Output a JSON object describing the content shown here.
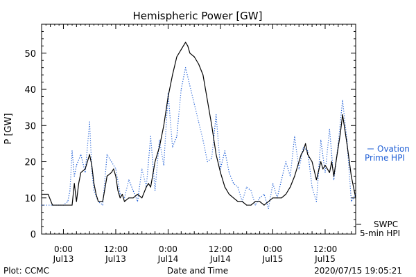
{
  "footer": {
    "plot_credit": "Plot: CCMC",
    "timestamp": "2020/07/15 19:05:21"
  },
  "legend": {
    "ovation_line1": "Ovation",
    "ovation_line2": "Prime HPI",
    "swpc_line1": "SWPC",
    "swpc_line2": "5-min HPI",
    "ovation_color": "#1f5fd6",
    "swpc_color": "#000000"
  },
  "chart_data": {
    "type": "line",
    "title": "Hemispheric Power [GW]",
    "xlabel": "Date and Time",
    "ylabel": "P [GW]",
    "ylim": [
      0,
      58
    ],
    "xlim": [
      "2020-07-12T19:00",
      "2020-07-15T19:00"
    ],
    "yticks": [
      0,
      10,
      20,
      30,
      40,
      50
    ],
    "xticks": [
      {
        "t": "2020-07-13T00:00",
        "time": "0:00",
        "date": "Jul13"
      },
      {
        "t": "2020-07-13T12:00",
        "time": "12:00",
        "date": "Jul13"
      },
      {
        "t": "2020-07-14T00:00",
        "time": "0:00",
        "date": "Jul14"
      },
      {
        "t": "2020-07-14T12:00",
        "time": "12:00",
        "date": "Jul14"
      },
      {
        "t": "2020-07-15T00:00",
        "time": "0:00",
        "date": "Jul15"
      },
      {
        "t": "2020-07-15T12:00",
        "time": "12:00",
        "date": "Jul15"
      }
    ],
    "grid": false,
    "legend_position": "right",
    "series": [
      {
        "name": "SWPC 5-min HPI",
        "style": "solid",
        "color": "#000000",
        "x": [
          "2020-07-12T19:00",
          "2020-07-12T20:30",
          "2020-07-12T21:30",
          "2020-07-13T02:00",
          "2020-07-13T02:30",
          "2020-07-13T03:00",
          "2020-07-13T03:30",
          "2020-07-13T04:00",
          "2020-07-13T05:00",
          "2020-07-13T06:00",
          "2020-07-13T06:30",
          "2020-07-13T07:00",
          "2020-07-13T07:30",
          "2020-07-13T08:00",
          "2020-07-13T09:00",
          "2020-07-13T10:00",
          "2020-07-13T11:00",
          "2020-07-13T11:30",
          "2020-07-13T12:00",
          "2020-07-13T12:30",
          "2020-07-13T13:00",
          "2020-07-13T13:30",
          "2020-07-13T14:00",
          "2020-07-13T15:00",
          "2020-07-13T16:00",
          "2020-07-13T17:00",
          "2020-07-13T18:00",
          "2020-07-13T19:00",
          "2020-07-13T19:30",
          "2020-07-13T20:00",
          "2020-07-13T21:00",
          "2020-07-13T22:00",
          "2020-07-13T23:00",
          "2020-07-14T00:00",
          "2020-07-14T01:00",
          "2020-07-14T02:00",
          "2020-07-14T03:00",
          "2020-07-14T04:00",
          "2020-07-14T04:30",
          "2020-07-14T05:00",
          "2020-07-14T06:00",
          "2020-07-14T07:00",
          "2020-07-14T08:00",
          "2020-07-14T09:00",
          "2020-07-14T10:00",
          "2020-07-14T11:00",
          "2020-07-14T12:00",
          "2020-07-14T13:00",
          "2020-07-14T14:00",
          "2020-07-14T15:00",
          "2020-07-14T16:00",
          "2020-07-14T17:00",
          "2020-07-14T18:00",
          "2020-07-14T19:00",
          "2020-07-14T20:00",
          "2020-07-14T21:00",
          "2020-07-14T22:00",
          "2020-07-15T00:00",
          "2020-07-15T01:00",
          "2020-07-15T02:00",
          "2020-07-15T03:00",
          "2020-07-15T04:00",
          "2020-07-15T05:00",
          "2020-07-15T06:00",
          "2020-07-15T06:30",
          "2020-07-15T07:00",
          "2020-07-15T07:30",
          "2020-07-15T08:00",
          "2020-07-15T09:00",
          "2020-07-15T10:00",
          "2020-07-15T11:00",
          "2020-07-15T11:30",
          "2020-07-15T12:00",
          "2020-07-15T13:00",
          "2020-07-15T13:30",
          "2020-07-15T14:00",
          "2020-07-15T15:00",
          "2020-07-15T15:30",
          "2020-07-15T16:00",
          "2020-07-15T16:30",
          "2020-07-15T17:00",
          "2020-07-15T18:00",
          "2020-07-15T19:00"
        ],
        "y": [
          11,
          11,
          8,
          8,
          14,
          9,
          14,
          17,
          18,
          22,
          19,
          14,
          11,
          9,
          9,
          16,
          17,
          18,
          16,
          12,
          10,
          11,
          9,
          10,
          10,
          11,
          10,
          13,
          14,
          13,
          20,
          24,
          30,
          38,
          44,
          49,
          51,
          53,
          52,
          50,
          49,
          47,
          44,
          37,
          30,
          22,
          17,
          13,
          11,
          10,
          9,
          9,
          8,
          8,
          9,
          9,
          8,
          10,
          10,
          10,
          11,
          13,
          16,
          20,
          22,
          23,
          25,
          22,
          20,
          15,
          20,
          18,
          19,
          17,
          20,
          16,
          24,
          28,
          33,
          29,
          25,
          16,
          10
        ]
      },
      {
        "name": "Ovation Prime HPI",
        "style": "dotted",
        "color": "#1f5fd6",
        "x": [
          "2020-07-12T19:00",
          "2020-07-12T23:00",
          "2020-07-13T00:00",
          "2020-07-13T01:00",
          "2020-07-13T01:30",
          "2020-07-13T02:00",
          "2020-07-13T02:30",
          "2020-07-13T03:00",
          "2020-07-13T04:00",
          "2020-07-13T05:00",
          "2020-07-13T06:00",
          "2020-07-13T06:30",
          "2020-07-13T07:00",
          "2020-07-13T08:00",
          "2020-07-13T09:00",
          "2020-07-13T10:00",
          "2020-07-13T11:00",
          "2020-07-13T12:00",
          "2020-07-13T13:00",
          "2020-07-13T14:00",
          "2020-07-13T15:00",
          "2020-07-13T16:00",
          "2020-07-13T17:00",
          "2020-07-13T18:00",
          "2020-07-13T19:00",
          "2020-07-13T20:00",
          "2020-07-13T21:00",
          "2020-07-13T22:00",
          "2020-07-13T23:00",
          "2020-07-14T00:00",
          "2020-07-14T01:00",
          "2020-07-14T02:00",
          "2020-07-14T03:00",
          "2020-07-14T04:00",
          "2020-07-14T05:00",
          "2020-07-14T06:00",
          "2020-07-14T07:00",
          "2020-07-14T08:00",
          "2020-07-14T09:00",
          "2020-07-14T10:00",
          "2020-07-14T11:00",
          "2020-07-14T12:00",
          "2020-07-14T13:00",
          "2020-07-14T14:00",
          "2020-07-14T15:00",
          "2020-07-14T16:00",
          "2020-07-14T17:00",
          "2020-07-14T18:00",
          "2020-07-14T19:00",
          "2020-07-14T20:00",
          "2020-07-14T21:00",
          "2020-07-14T22:00",
          "2020-07-14T23:00",
          "2020-07-15T00:00",
          "2020-07-15T01:00",
          "2020-07-15T02:00",
          "2020-07-15T03:00",
          "2020-07-15T04:00",
          "2020-07-15T05:00",
          "2020-07-15T06:00",
          "2020-07-15T07:00",
          "2020-07-15T08:00",
          "2020-07-15T09:00",
          "2020-07-15T10:00",
          "2020-07-15T11:00",
          "2020-07-15T12:00",
          "2020-07-15T13:00",
          "2020-07-15T14:00",
          "2020-07-15T15:00",
          "2020-07-15T16:00",
          "2020-07-15T17:00",
          "2020-07-15T18:00",
          "2020-07-15T19:00"
        ],
        "y": [
          8,
          8,
          8,
          9,
          12,
          23,
          16,
          19,
          22,
          17,
          31,
          18,
          12,
          9,
          8,
          22,
          20,
          18,
          11,
          10,
          15,
          12,
          9,
          18,
          13,
          27,
          12,
          26,
          19,
          39,
          24,
          27,
          40,
          46,
          41,
          36,
          31,
          26,
          20,
          21,
          33,
          18,
          23,
          17,
          14,
          13,
          9,
          13,
          12,
          8,
          10,
          11,
          7,
          14,
          10,
          15,
          20,
          16,
          27,
          18,
          24,
          23,
          13,
          9,
          26,
          17,
          29,
          15,
          25,
          37,
          26,
          9,
          11
        ]
      }
    ]
  }
}
